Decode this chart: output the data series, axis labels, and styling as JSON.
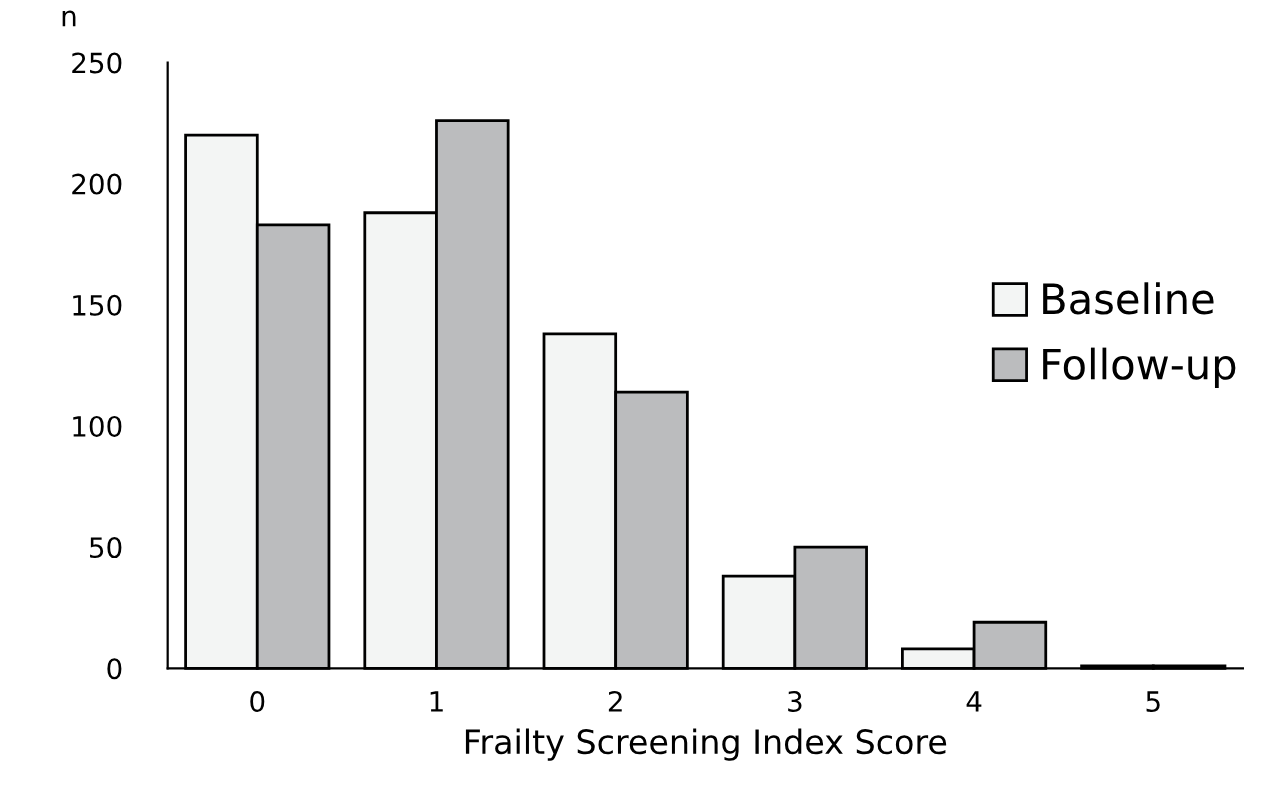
{
  "chart_data": {
    "type": "bar",
    "xlabel": "Frailty Screening Index Score",
    "ylabel": "n",
    "categories": [
      "0",
      "1",
      "2",
      "3",
      "4",
      "5"
    ],
    "series": [
      {
        "name": "Baseline",
        "color": "#f3f5f4",
        "values": [
          220,
          188,
          138,
          38,
          8,
          1
        ]
      },
      {
        "name": "Follow-up",
        "color": "#bbbcbe",
        "values": [
          183,
          226,
          114,
          50,
          19,
          1
        ]
      }
    ],
    "ylim": [
      0,
      250
    ],
    "yticks": [
      0,
      50,
      100,
      150,
      200,
      250
    ],
    "grid": false,
    "legend": "right"
  }
}
